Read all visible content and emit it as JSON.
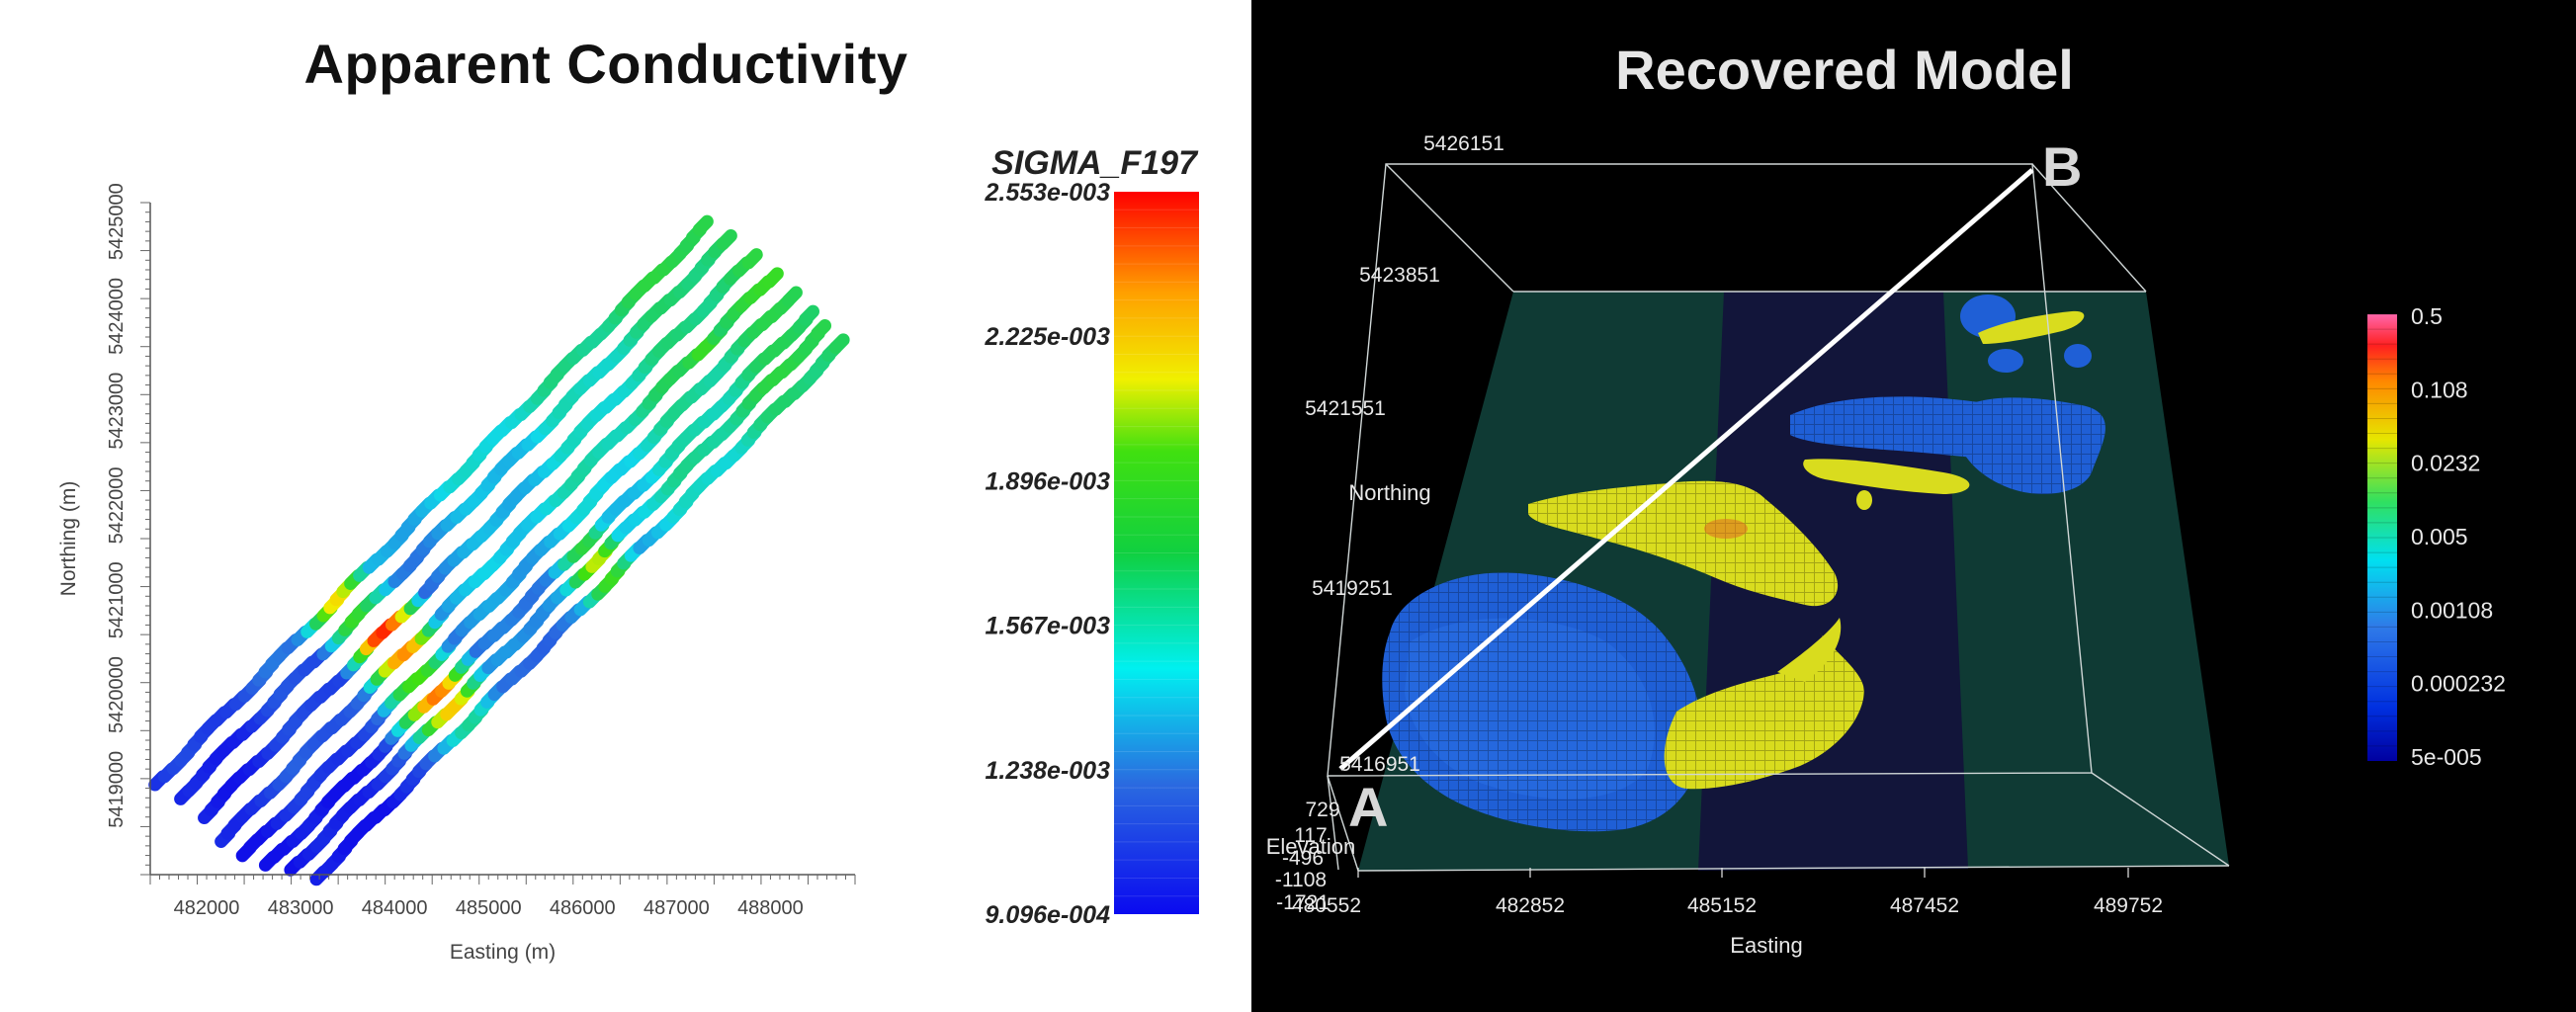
{
  "left_panel": {
    "title": "Apparent Conductivity"
  },
  "right_panel": {
    "title": "Recovered Model"
  },
  "chart_data": [
    {
      "type": "scatter",
      "title": "Apparent Conductivity",
      "xlabel": "Easting (m)",
      "ylabel": "Northing (m)",
      "x_ticks": [
        "482000",
        "483000",
        "484000",
        "485000",
        "486000",
        "487000",
        "488000"
      ],
      "y_ticks": [
        "5419000",
        "5420000",
        "5421000",
        "5422000",
        "5423000",
        "5424000",
        "5425000"
      ],
      "xlim": [
        481400,
        488900
      ],
      "ylim": [
        5418100,
        5425200
      ],
      "colorbar": {
        "title": "SIGMA_F197",
        "labels": [
          "2.553e-003",
          "2.225e-003",
          "1.896e-003",
          "1.567e-003",
          "1.238e-003",
          "9.096e-004"
        ],
        "max": 0.002553,
        "min": 0.0009096
      },
      "flight_lines": [
        {
          "x0": 481450,
          "y0": 5419050,
          "x1": 487350,
          "y1": 5425000
        },
        {
          "x0": 481700,
          "y0": 5418900,
          "x1": 487600,
          "y1": 5424850
        },
        {
          "x0": 481950,
          "y0": 5418700,
          "x1": 487850,
          "y1": 5424650
        },
        {
          "x0": 482150,
          "y0": 5418450,
          "x1": 488050,
          "y1": 5424450
        },
        {
          "x0": 482400,
          "y0": 5418300,
          "x1": 488250,
          "y1": 5424250
        },
        {
          "x0": 482650,
          "y0": 5418200,
          "x1": 488450,
          "y1": 5424050
        },
        {
          "x0": 482900,
          "y0": 5418150,
          "x1": 488600,
          "y1": 5423900
        },
        {
          "x0": 483150,
          "y0": 5418050,
          "x1": 488800,
          "y1": 5423750
        }
      ],
      "anomalies": [
        {
          "x": 484000,
          "y": 5420600,
          "value": 0.00255
        },
        {
          "x": 484500,
          "y": 5420000,
          "value": 0.00245
        },
        {
          "x": 483400,
          "y": 5421000,
          "value": 0.0022
        },
        {
          "x": 486200,
          "y": 5421400,
          "value": 0.00205
        },
        {
          "x": 487300,
          "y": 5423700,
          "value": 0.00195
        }
      ]
    },
    {
      "type": "3d-volume",
      "title": "Recovered Model",
      "xlabel": "Easting",
      "ylabel": "Northing",
      "zlabel": "Elevation",
      "x_ticks": [
        "480552",
        "482852",
        "485152",
        "487452",
        "489752"
      ],
      "y_ticks": [
        "5416951",
        "5419251",
        "5421551",
        "5423851",
        "5426151"
      ],
      "z_ticks": [
        "729",
        "117",
        "-496",
        "-1108",
        "-1721"
      ],
      "colorbar": {
        "labels": [
          "0.5",
          "0.108",
          "0.0232",
          "0.005",
          "0.00108",
          "0.000232",
          "5e-005"
        ]
      },
      "section": {
        "start_label": "A",
        "end_label": "B"
      }
    }
  ],
  "colors": {
    "left_bg": "#ffffff",
    "right_bg": "#000000",
    "model_plane": "#0f3a34",
    "model_band": "#12153a",
    "conductor_blue": "#1f5fd6",
    "conductor_yellow": "#d9dc1e"
  }
}
